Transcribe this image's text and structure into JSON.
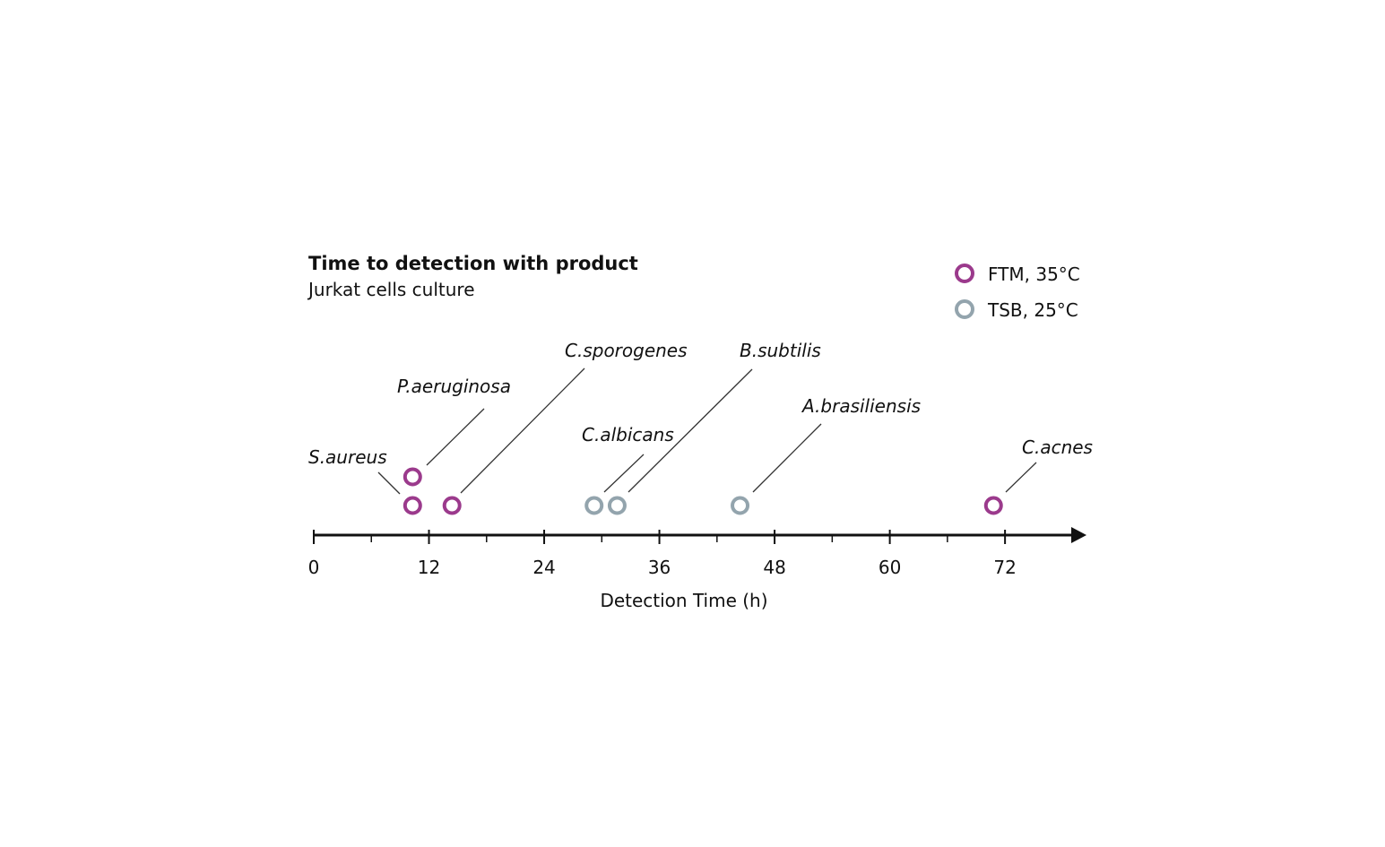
{
  "chart_data": {
    "type": "timeline",
    "title": "Time to detection with product",
    "subtitle": "Jurkat cells culture",
    "xlabel": "Detection Time (h)",
    "xlim": [
      0,
      80
    ],
    "xticks": [
      0,
      12,
      24,
      36,
      48,
      60,
      72
    ],
    "xminorticks": [
      6,
      18,
      30,
      42,
      54,
      66
    ],
    "legend": "top-right",
    "series": [
      {
        "name": "FTM, 35°C",
        "color": "#9b3a8c",
        "labels": [
          "S.aureus",
          "P.aeruginosa",
          "C.sporogenes",
          "C.acnes"
        ],
        "values": [
          10.3,
          10.3,
          14.4,
          70.8
        ]
      },
      {
        "name": "TSB, 25°C",
        "color": "#93a4ad",
        "labels": [
          "C.albicans",
          "B.subtilis",
          "A.brasiliensis"
        ],
        "values": [
          29.2,
          31.6,
          44.4
        ]
      }
    ]
  }
}
